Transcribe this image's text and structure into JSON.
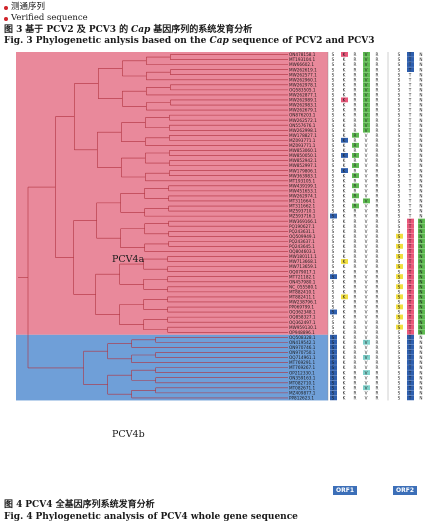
{
  "legend": {
    "items": [
      {
        "label": "测通序列"
      },
      {
        "label": "Verified sequence"
      }
    ],
    "dot_color": "#d0242b"
  },
  "caption_top": {
    "cn_prefix": "图 3",
    "cn_text": "基于 PCV2 及 PCV3 的",
    "cn_italic": "Cap",
    "cn_suffix": "基因序列的系统发育分析",
    "en_prefix": "Fig. 3",
    "en_text": "Phylogenetic anlysis based on the",
    "en_italic": "Cap",
    "en_suffix": "sequence of PCV2 and PCV3"
  },
  "caption_bottom": {
    "cn_prefix": "图 4",
    "cn_text": "PCV4 全基因序列系统发育分析",
    "en_prefix": "Fig. 4",
    "en_text": "Phylogenetic analysis of PCV4 whole gene sequence"
  },
  "clades": [
    {
      "label": "PCV4a",
      "color": "#e9899b"
    },
    {
      "label": "PCV4b",
      "color": "#6f9fd8"
    }
  ],
  "orf_labels": [
    "ORF1",
    "ORF2"
  ],
  "taxa": [
    "ON478158.1",
    "MT193104.1",
    "MW66602.1",
    "MW262619.1",
    "MW262577.1",
    "MW262960.1",
    "MW262978.1",
    "OQ583505.1",
    "MW262877.1",
    "MW262989.1",
    "MW262983.1",
    "MW262679.1",
    "ON876203.1",
    "MW262572.1",
    "ON557676.1",
    "MW262998.1",
    "MW178827.1",
    "MZ093771.1",
    "MZ093771.1",
    "MW853060.1",
    "MW850050.1",
    "MW852942.1",
    "MW852997.1",
    "MW179806.1",
    "MW363983.1",
    "MT193105.1",
    "MW439199.1",
    "MW451653.1",
    "MW262974.1",
    "MT311664.1",
    "MT311662.1",
    "MZ593710.1",
    "MZ593716.1",
    "MW369166.1",
    "PQ190627.1",
    "PQ243631.1",
    "OQ509949.1",
    "PQ243637.1",
    "PQ243645.1",
    "OQ804603.1",
    "MW180111.1",
    "MW713668.1",
    "MW713659.1",
    "OQ079017.1",
    "MT721182.1",
    "ON457980.1",
    "NC_055580.1",
    "MT882410.1",
    "MT882411.1",
    "MW238796.1",
    "PP069799.1",
    "OQ362348.1",
    "OQ858327.1",
    "OQ362497.1",
    "MW959130.1",
    "OP948896.1",
    "OQ508328.1",
    "ON419542.1",
    "ON970746.1",
    "ON970750.1",
    "OQ714961.1",
    "MT769291.1",
    "MT769267.1",
    "OP212330.1",
    "ON359163.1",
    "MT082710.1",
    "MT082671.1",
    "MZ409877.1",
    "PP812623.1"
  ],
  "colors": {
    "pink": "#e9899b",
    "blue": "#6f9fd8",
    "red_cell": "#e9577a",
    "green_cell": "#5dbb50",
    "yellow_cell": "#f1df3f",
    "navy_cell": "#2e5fae",
    "aqua_cell": "#7fd2cc"
  }
}
